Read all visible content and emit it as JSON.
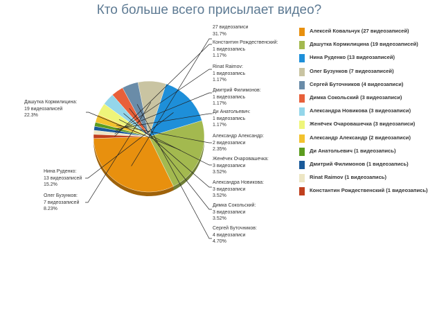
{
  "chart_data": {
    "type": "pie",
    "title": "Кто больше всего присылает видео?",
    "slices": [
      {
        "name": "Алексей Ковальчук (27 видеозаписей)",
        "color": "#e8900e",
        "callout": [
          "27 видеозаписи",
          "31.7%"
        ],
        "value": 27,
        "percent": 31.7
      },
      {
        "name": "Дашутка Кормилицина (19 видеозаписей)",
        "color": "#a3b94f",
        "callout": [
          "Дашутка Кормилицина:",
          "19 видеозаписей",
          "22.3%"
        ],
        "value": 19,
        "percent": 22.3
      },
      {
        "name": "Нина Руденко (13 видеозаписей)",
        "color": "#1e8fd9",
        "callout": [
          "Нина Руденко:",
          "13 видеозаписей",
          "15.2%"
        ],
        "value": 13,
        "percent": 15.2
      },
      {
        "name": "Олег Бузунков (7 видеозаписей)",
        "color": "#c9c4a2",
        "callout": [
          "Олег Бузунков:",
          "7 видеозаписей",
          "8.23%"
        ],
        "value": 7,
        "percent": 8.23
      },
      {
        "name": "Сергей Буточников (4 видеозаписи)",
        "color": "#6a8ca8",
        "callout": [
          "Сергей Буточников:",
          "4 видеозаписи",
          "4.70%"
        ],
        "value": 4,
        "percent": 4.7
      },
      {
        "name": "Димка Сокольский (3 видеозаписи)",
        "color": "#e8603a",
        "callout": [
          "Димка Сокольский:",
          "3 видеозаписи",
          "3.52%"
        ],
        "value": 3,
        "percent": 3.52
      },
      {
        "name": "Александра Новикова (3 видеозаписи)",
        "color": "#94d6ea",
        "callout": [
          "Александра Новикова:",
          "3 видеозаписи",
          "3.52%"
        ],
        "value": 3,
        "percent": 3.52
      },
      {
        "name": "Женёчек Очаровашечка (3 видеозаписи)",
        "color": "#eef57a",
        "callout": [
          "Женёчек Очаровашечка:",
          "3 видеозаписи",
          "3.52%"
        ],
        "value": 3,
        "percent": 3.52
      },
      {
        "name": "Александр Александр (2 видеозаписи)",
        "color": "#f2c22e",
        "callout": [
          "Александр Александр:",
          "2 видеозаписи",
          "2.35%"
        ],
        "value": 2,
        "percent": 2.35
      },
      {
        "name": "Ди Анатольевич (1 видеозапись)",
        "color": "#5c9c1e",
        "callout": [
          "Ди Анатольевич:",
          "1 видеозапись",
          "1.17%"
        ],
        "value": 1,
        "percent": 1.17
      },
      {
        "name": "Дмитрий Филимонов (1 видеозапись)",
        "color": "#1a5a9a",
        "callout": [
          "Дмитрий Филимонов:",
          "1 видеозапись",
          "1.17%"
        ],
        "value": 1,
        "percent": 1.17
      },
      {
        "name": "Rinat Raimov (1 видеозапись)",
        "color": "#ede6c4",
        "callout": [
          "Rinat Raimov:",
          "1 видеозапись",
          "1.17%"
        ],
        "value": 1,
        "percent": 1.17
      },
      {
        "name": "Константин Рождественский (1 видеозапись)",
        "color": "#c0401e",
        "callout": [
          "Константин Рождественский:",
          "1 видеозапись",
          "1.17%"
        ],
        "value": 1,
        "percent": 1.17
      }
    ]
  }
}
